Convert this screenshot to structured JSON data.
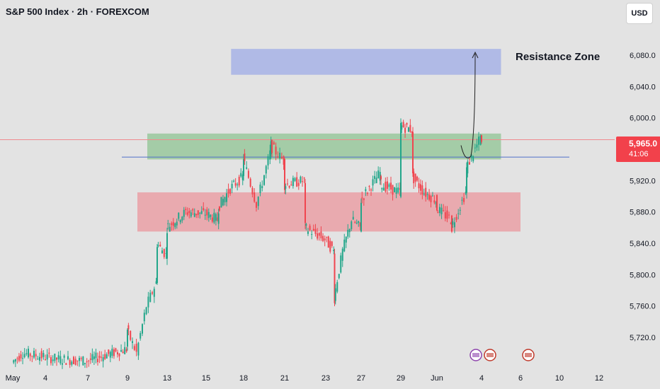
{
  "header": {
    "symbol_title": "S&P 500 Index · 2h · FOREXCOM",
    "currency": "USD"
  },
  "colors": {
    "background": "#e3e3e3",
    "up_candle": "#22a68a",
    "down_candle": "#f0454f",
    "resistance_zone": "#aab5e6",
    "green_zone": "#9cc9a0",
    "red_zone": "#e9a3a8",
    "trendline": "#4f6fc9",
    "current_price_line": "#f08a8f",
    "price_badge": "#f2414b"
  },
  "annotation": {
    "resistance_label": "Resistance Zone"
  },
  "price_badge": {
    "price": "5,965.0",
    "countdown": "41:06"
  },
  "chart_data": {
    "type": "candlestick",
    "title": "S&P 500 Index · 2h · FOREXCOM",
    "y_axis": {
      "ticks": [
        6080,
        6040,
        6000,
        5960,
        5920,
        5880,
        5840,
        5800,
        5760,
        5720
      ],
      "tick_labels": [
        "6,080.0",
        "6,040.0",
        "6,000.0",
        "5,960.0",
        "5,920.0",
        "5,880.0",
        "5,840.0",
        "5,800.0",
        "5,760.0",
        "5,720.0"
      ],
      "range": [
        5688,
        6114
      ],
      "position": "right"
    },
    "x_axis": {
      "tick_labels": [
        "May",
        "4",
        "7",
        "9",
        "13",
        "15",
        "18",
        "21",
        "23",
        "27",
        "29",
        "Jun",
        "4",
        "6",
        "10",
        "12"
      ],
      "tick_dates": [
        "2025-05-01",
        "2025-05-04",
        "2025-05-07",
        "2025-05-09",
        "2025-05-13",
        "2025-05-15",
        "2025-05-18",
        "2025-05-21",
        "2025-05-23",
        "2025-05-27",
        "2025-05-29",
        "2025-06-01",
        "2025-06-04",
        "2025-06-06",
        "2025-06-10",
        "2025-06-12"
      ]
    },
    "grid": false,
    "current_price": 5965.0,
    "trendline_level": 5950,
    "zones": [
      {
        "name": "Resistance Zone",
        "color": "#aab5e6",
        "from": "2025-05-17",
        "to": "2025-06-05",
        "low": 6055,
        "high": 6088
      },
      {
        "color": "#9cc9a0",
        "from": "2025-05-11",
        "to": "2025-06-05",
        "low": 5947,
        "high": 5980
      },
      {
        "color": "#e9a3a8",
        "from": "2025-05-10",
        "to": "2025-06-06",
        "low": 5855,
        "high": 5905
      }
    ],
    "projection": {
      "from_date": "2025-06-03",
      "from_price": 5965,
      "dip": 5955,
      "to_price": 6080
    },
    "series": [
      {
        "type": "close_path",
        "points": [
          [
            "2025-05-01",
            5688
          ],
          [
            "2025-05-02",
            5700
          ],
          [
            "2025-05-05",
            5692
          ],
          [
            "2025-05-07",
            5690
          ],
          [
            "2025-05-08",
            5698
          ],
          [
            "2025-05-09",
            5705
          ],
          [
            "2025-05-09",
            5730
          ],
          [
            "2025-05-10",
            5700
          ],
          [
            "2025-05-11",
            5760
          ],
          [
            "2025-05-12",
            5790
          ],
          [
            "2025-05-12",
            5840
          ],
          [
            "2025-05-13",
            5825
          ],
          [
            "2025-05-13",
            5860
          ],
          [
            "2025-05-14",
            5880
          ],
          [
            "2025-05-15",
            5878
          ],
          [
            "2025-05-16",
            5870
          ],
          [
            "2025-05-16",
            5885
          ],
          [
            "2025-05-17",
            5910
          ],
          [
            "2025-05-18",
            5925
          ],
          [
            "2025-05-18",
            5950
          ],
          [
            "2025-05-19",
            5890
          ],
          [
            "2025-05-20",
            5955
          ],
          [
            "2025-05-20",
            5965
          ],
          [
            "2025-05-21",
            5945
          ],
          [
            "2025-05-21",
            5915
          ],
          [
            "2025-05-22",
            5920
          ],
          [
            "2025-05-22",
            5860
          ],
          [
            "2025-05-23",
            5845
          ],
          [
            "2025-05-24",
            5830
          ],
          [
            "2025-05-24",
            5770
          ],
          [
            "2025-05-25",
            5830
          ],
          [
            "2025-05-26",
            5870
          ],
          [
            "2025-05-27",
            5860
          ],
          [
            "2025-05-27",
            5895
          ],
          [
            "2025-05-28",
            5930
          ],
          [
            "2025-05-28",
            5915
          ],
          [
            "2025-05-29",
            5905
          ],
          [
            "2025-05-29",
            5990
          ],
          [
            "2025-05-30",
            5985
          ],
          [
            "2025-05-30",
            5925
          ],
          [
            "2025-05-31",
            5905
          ],
          [
            "2025-06-01",
            5895
          ],
          [
            "2025-06-01",
            5885
          ],
          [
            "2025-06-02",
            5870
          ],
          [
            "2025-06-02",
            5860
          ],
          [
            "2025-06-03",
            5905
          ],
          [
            "2025-06-03",
            5935
          ],
          [
            "2025-06-04",
            5975
          ],
          [
            "2025-06-04",
            5965
          ]
        ]
      }
    ]
  }
}
